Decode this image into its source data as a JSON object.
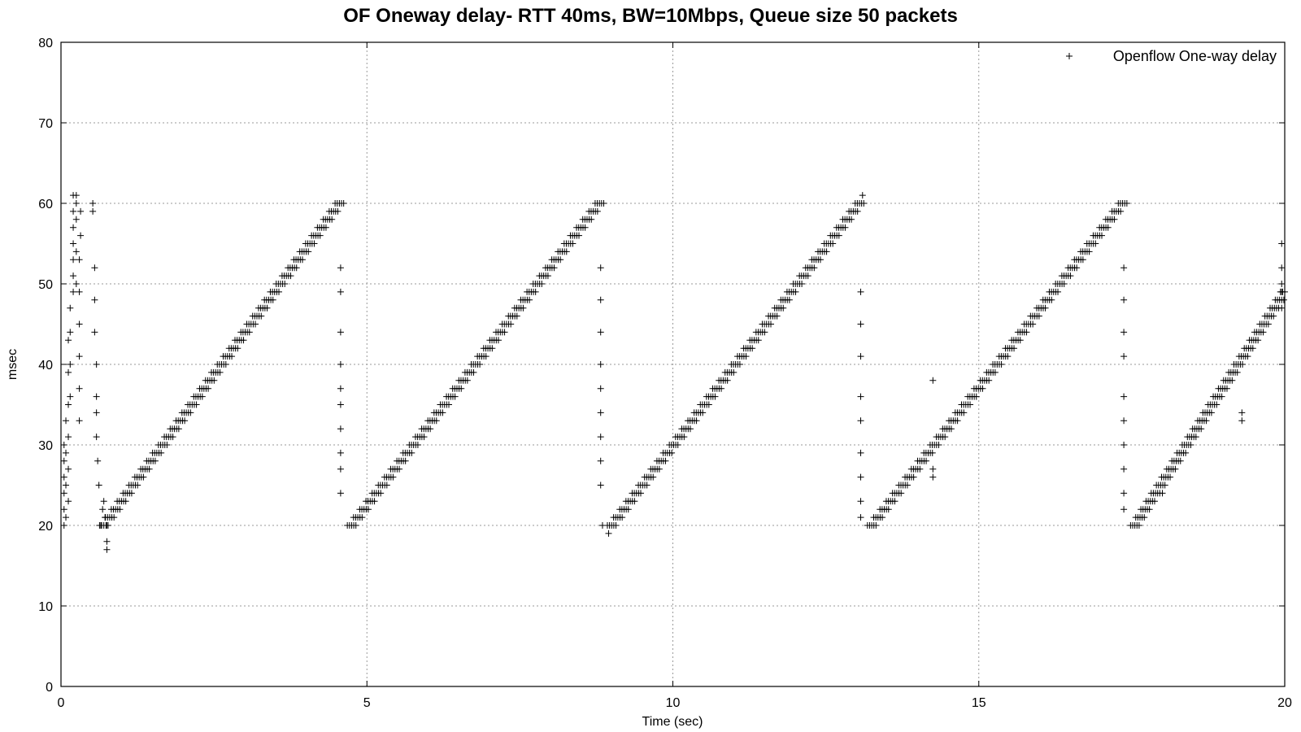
{
  "chart_data": {
    "type": "scatter",
    "title": "OF Oneway delay- RTT 40ms, BW=10Mbps, Queue size 50 packets",
    "xlabel": "Time (sec)",
    "ylabel": "msec",
    "xlim": [
      0,
      20
    ],
    "ylim": [
      0,
      80
    ],
    "xticks": [
      0,
      5,
      10,
      15,
      20
    ],
    "yticks": [
      0,
      10,
      20,
      30,
      40,
      50,
      60,
      70,
      80
    ],
    "grid": true,
    "legend_position": "top-right",
    "marker": "+",
    "series": [
      {
        "name": "Openflow One-way delay",
        "color": "#000000",
        "segments": [
          {
            "start": [
              0.7,
              20
            ],
            "end": [
              4.55,
              60
            ],
            "points_per_ms": 5
          },
          {
            "start": [
              4.75,
              20
            ],
            "end": [
              8.8,
              60
            ],
            "points_per_ms": 5
          },
          {
            "start": [
              9.0,
              20
            ],
            "end": [
              13.05,
              60
            ],
            "points_per_ms": 5
          },
          {
            "start": [
              13.25,
              20
            ],
            "end": [
              17.35,
              60
            ],
            "points_per_ms": 5
          },
          {
            "start": [
              17.55,
              20
            ],
            "end": [
              20.0,
              49
            ],
            "points_per_ms": 5
          }
        ],
        "extra_points": [
          [
            0.05,
            20
          ],
          [
            0.05,
            22
          ],
          [
            0.05,
            24
          ],
          [
            0.05,
            26
          ],
          [
            0.05,
            28
          ],
          [
            0.05,
            30
          ],
          [
            0.08,
            21
          ],
          [
            0.08,
            25
          ],
          [
            0.08,
            29
          ],
          [
            0.08,
            33
          ],
          [
            0.12,
            23
          ],
          [
            0.12,
            27
          ],
          [
            0.12,
            31
          ],
          [
            0.12,
            35
          ],
          [
            0.12,
            39
          ],
          [
            0.12,
            43
          ],
          [
            0.15,
            36
          ],
          [
            0.15,
            40
          ],
          [
            0.15,
            44
          ],
          [
            0.15,
            47
          ],
          [
            0.2,
            49
          ],
          [
            0.2,
            51
          ],
          [
            0.2,
            53
          ],
          [
            0.2,
            55
          ],
          [
            0.2,
            57
          ],
          [
            0.2,
            59
          ],
          [
            0.2,
            61
          ],
          [
            0.25,
            50
          ],
          [
            0.25,
            54
          ],
          [
            0.25,
            58
          ],
          [
            0.25,
            60
          ],
          [
            0.25,
            61
          ],
          [
            0.3,
            33
          ],
          [
            0.3,
            37
          ],
          [
            0.3,
            41
          ],
          [
            0.3,
            45
          ],
          [
            0.3,
            49
          ],
          [
            0.3,
            53
          ],
          [
            0.32,
            56
          ],
          [
            0.32,
            59
          ],
          [
            0.52,
            59
          ],
          [
            0.52,
            60
          ],
          [
            0.55,
            52
          ],
          [
            0.55,
            48
          ],
          [
            0.55,
            44
          ],
          [
            0.58,
            40
          ],
          [
            0.58,
            36
          ],
          [
            0.58,
            34
          ],
          [
            0.58,
            31
          ],
          [
            0.6,
            28
          ],
          [
            0.62,
            25
          ],
          [
            0.65,
            20
          ],
          [
            0.68,
            22
          ],
          [
            0.7,
            23
          ],
          [
            0.72,
            21
          ],
          [
            0.75,
            18
          ],
          [
            0.75,
            17
          ],
          [
            0.75,
            20
          ],
          [
            4.57,
            52
          ],
          [
            4.57,
            49
          ],
          [
            4.57,
            44
          ],
          [
            4.57,
            40
          ],
          [
            4.57,
            37
          ],
          [
            4.57,
            35
          ],
          [
            4.57,
            32
          ],
          [
            4.57,
            29
          ],
          [
            4.57,
            27
          ],
          [
            4.57,
            24
          ],
          [
            8.82,
            52
          ],
          [
            8.82,
            48
          ],
          [
            8.82,
            44
          ],
          [
            8.82,
            40
          ],
          [
            8.82,
            37
          ],
          [
            8.82,
            34
          ],
          [
            8.82,
            31
          ],
          [
            8.82,
            28
          ],
          [
            8.82,
            25
          ],
          [
            8.85,
            20
          ],
          [
            8.95,
            19
          ],
          [
            13.07,
            49
          ],
          [
            13.07,
            45
          ],
          [
            13.07,
            41
          ],
          [
            13.07,
            36
          ],
          [
            13.07,
            33
          ],
          [
            13.07,
            29
          ],
          [
            13.07,
            26
          ],
          [
            13.07,
            23
          ],
          [
            13.07,
            21
          ],
          [
            13.1,
            61
          ],
          [
            14.25,
            38
          ],
          [
            14.25,
            27
          ],
          [
            14.25,
            26
          ],
          [
            17.37,
            52
          ],
          [
            17.37,
            48
          ],
          [
            17.37,
            44
          ],
          [
            17.37,
            41
          ],
          [
            17.37,
            36
          ],
          [
            17.37,
            33
          ],
          [
            17.37,
            30
          ],
          [
            17.37,
            27
          ],
          [
            17.37,
            24
          ],
          [
            17.37,
            22
          ],
          [
            18.0,
            24
          ],
          [
            19.3,
            33
          ],
          [
            19.3,
            34
          ],
          [
            19.95,
            55
          ],
          [
            19.95,
            52
          ],
          [
            19.95,
            50
          ],
          [
            19.95,
            49
          ],
          [
            19.95,
            47
          ]
        ]
      }
    ]
  }
}
